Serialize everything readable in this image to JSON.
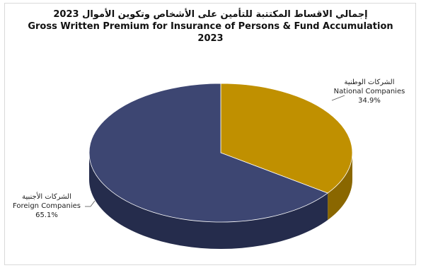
{
  "chart_data": {
    "type": "pie",
    "title_ar": "إجمالي الاقساط المكتتبة للتأمين على الأشخاص وتكوين الأموال 2023",
    "title_en": "Gross Written Premium for Insurance of Persons & Fund Accumulation",
    "title_year": "2023",
    "slices": [
      {
        "label_ar": "الشركات الوطنية",
        "label_en": "National Companies",
        "value": 34.9,
        "value_label": "34.9%",
        "color": "#C09000",
        "side_color": "#8A6700"
      },
      {
        "label_ar": "الشركات الأجنبية",
        "label_en": "Foreign Companies",
        "value": 65.1,
        "value_label": "65.1%",
        "color": "#3D4672",
        "side_color": "#252C4C"
      }
    ],
    "style": "3d"
  }
}
